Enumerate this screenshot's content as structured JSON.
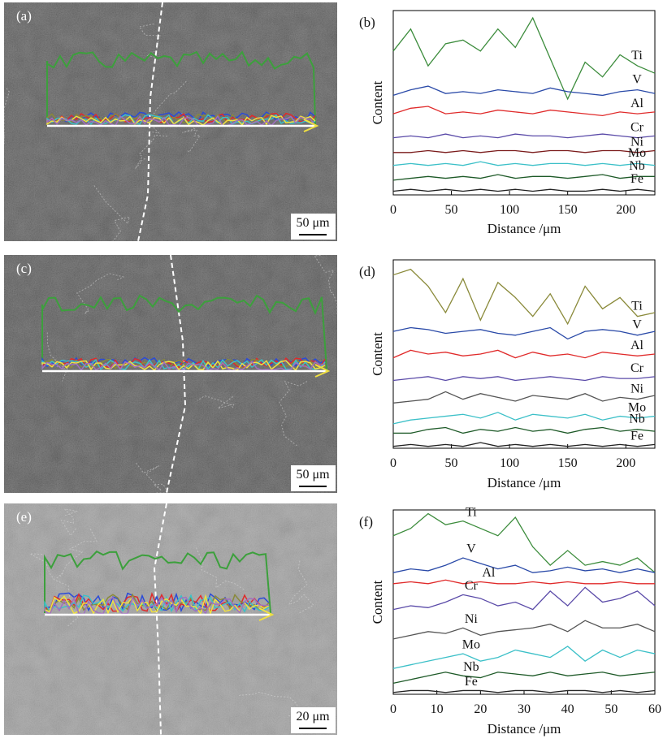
{
  "images": [
    {
      "label": "(a)",
      "scale_bar": "50 μm"
    },
    {
      "label": "(c)",
      "scale_bar": "50 μm"
    },
    {
      "label": "(e)",
      "scale_bar": "20 μm"
    }
  ],
  "chart_data": [
    {
      "type": "line",
      "label": "(b)",
      "xlabel": "Distance /μm",
      "ylabel": "Content",
      "x": [
        0,
        15,
        30,
        45,
        60,
        75,
        90,
        105,
        120,
        135,
        150,
        165,
        180,
        195,
        210,
        225
      ],
      "xlim": [
        0,
        225
      ],
      "ylim": [
        0,
        100
      ],
      "xticks": [
        0,
        50,
        100,
        150,
        200
      ],
      "series": [
        {
          "name": "Ti",
          "color": "#3c8c3c",
          "values": [
            78,
            90,
            70,
            82,
            84,
            78,
            90,
            80,
            96,
            74,
            52,
            72,
            64,
            76,
            70,
            66
          ]
        },
        {
          "name": "V",
          "color": "#2a4aa8",
          "values": [
            54,
            57,
            59,
            55,
            56,
            55,
            57,
            56,
            55,
            58,
            56,
            55,
            54,
            56,
            57,
            55
          ]
        },
        {
          "name": "Al",
          "color": "#e02a2a",
          "values": [
            44,
            47,
            48,
            44,
            45,
            44,
            46,
            45,
            44,
            46,
            45,
            44,
            43,
            45,
            44,
            45
          ]
        },
        {
          "name": "Cr",
          "color": "#5a4aa8",
          "values": [
            31,
            32,
            31,
            33,
            31,
            32,
            31,
            33,
            32,
            32,
            31,
            32,
            33,
            32,
            31,
            32
          ]
        },
        {
          "name": "Ni",
          "color": "#7a1a1a",
          "values": [
            23,
            23,
            24,
            23,
            24,
            23,
            24,
            24,
            23,
            24,
            24,
            23,
            24,
            24,
            23,
            24
          ]
        },
        {
          "name": "Mo",
          "color": "#3cc0c8",
          "values": [
            16,
            17,
            16,
            17,
            16,
            18,
            16,
            17,
            16,
            17,
            17,
            16,
            17,
            16,
            17,
            16
          ]
        },
        {
          "name": "Nb",
          "color": "#1e5a28",
          "values": [
            8,
            9,
            10,
            9,
            10,
            9,
            11,
            9,
            10,
            10,
            9,
            10,
            11,
            9,
            10,
            10
          ]
        },
        {
          "name": "Fe",
          "color": "#222222",
          "values": [
            2,
            3,
            2,
            3,
            2,
            3,
            2,
            3,
            2,
            3,
            2,
            2,
            3,
            2,
            3,
            2
          ]
        }
      ]
    },
    {
      "type": "line",
      "label": "(d)",
      "xlabel": "Distance /μm",
      "ylabel": "Content",
      "x": [
        0,
        15,
        30,
        45,
        60,
        75,
        90,
        105,
        120,
        135,
        150,
        165,
        180,
        195,
        210,
        225
      ],
      "xlim": [
        0,
        225
      ],
      "ylim": [
        0,
        100
      ],
      "xticks": [
        0,
        50,
        100,
        150,
        200
      ],
      "series": [
        {
          "name": "Ti",
          "color": "#8a8a3a",
          "values": [
            92,
            95,
            86,
            72,
            90,
            68,
            88,
            80,
            70,
            82,
            66,
            86,
            74,
            80,
            70,
            72
          ]
        },
        {
          "name": "V",
          "color": "#2a4aa8",
          "values": [
            62,
            64,
            63,
            61,
            62,
            63,
            61,
            60,
            62,
            64,
            58,
            62,
            63,
            62,
            60,
            62
          ]
        },
        {
          "name": "Al",
          "color": "#e02a2a",
          "values": [
            48,
            52,
            50,
            51,
            49,
            50,
            52,
            48,
            51,
            49,
            50,
            48,
            51,
            50,
            49,
            50
          ]
        },
        {
          "name": "Cr",
          "color": "#5a4aa8",
          "values": [
            36,
            37,
            38,
            36,
            38,
            37,
            38,
            36,
            37,
            38,
            37,
            36,
            38,
            37,
            37,
            38
          ]
        },
        {
          "name": "Ni",
          "color": "#555555",
          "values": [
            24,
            25,
            26,
            30,
            26,
            29,
            27,
            25,
            28,
            27,
            26,
            29,
            25,
            27,
            26,
            28
          ]
        },
        {
          "name": "Mo",
          "color": "#3cc0c8",
          "values": [
            13,
            15,
            16,
            17,
            18,
            16,
            19,
            15,
            18,
            17,
            16,
            18,
            15,
            17,
            16,
            17
          ]
        },
        {
          "name": "Nb",
          "color": "#1e5a28",
          "values": [
            8,
            8,
            10,
            11,
            8,
            10,
            9,
            11,
            9,
            10,
            8,
            10,
            11,
            9,
            10,
            9
          ]
        },
        {
          "name": "Fe",
          "color": "#222222",
          "values": [
            1,
            2,
            1,
            2,
            1,
            3,
            1,
            2,
            1,
            2,
            1,
            2,
            1,
            2,
            1,
            2
          ]
        }
      ]
    },
    {
      "type": "line",
      "label": "(f)",
      "xlabel": "Distance /μm",
      "ylabel": "Content",
      "x": [
        0,
        4,
        8,
        12,
        16,
        20,
        24,
        28,
        32,
        36,
        40,
        44,
        48,
        52,
        56,
        60
      ],
      "xlim": [
        0,
        60
      ],
      "ylim": [
        0,
        100
      ],
      "xticks": [
        0,
        10,
        20,
        30,
        40,
        50,
        60
      ],
      "series": [
        {
          "name": "Ti",
          "color": "#3c8c3c",
          "values": [
            86,
            90,
            98,
            92,
            94,
            90,
            86,
            96,
            80,
            70,
            78,
            70,
            72,
            70,
            74,
            66
          ]
        },
        {
          "name": "V",
          "color": "#2a4aa8",
          "values": [
            66,
            68,
            67,
            70,
            74,
            71,
            68,
            70,
            66,
            67,
            69,
            67,
            68,
            66,
            68,
            66
          ]
        },
        {
          "name": "Al",
          "color": "#e02a2a",
          "values": [
            60,
            61,
            60,
            62,
            60,
            61,
            60,
            60,
            61,
            60,
            61,
            60,
            60,
            61,
            60,
            60
          ]
        },
        {
          "name": "Cr",
          "color": "#5a4aa8",
          "values": [
            46,
            48,
            47,
            50,
            54,
            52,
            48,
            50,
            46,
            56,
            48,
            58,
            50,
            52,
            56,
            48
          ]
        },
        {
          "name": "Ni",
          "color": "#555555",
          "values": [
            30,
            32,
            34,
            33,
            36,
            32,
            34,
            35,
            36,
            38,
            34,
            40,
            36,
            36,
            38,
            34
          ]
        },
        {
          "name": "Mo",
          "color": "#3cc0c8",
          "values": [
            14,
            16,
            18,
            20,
            22,
            18,
            20,
            24,
            22,
            20,
            26,
            18,
            24,
            20,
            24,
            22
          ]
        },
        {
          "name": "Nb",
          "color": "#1e5a28",
          "values": [
            6,
            8,
            10,
            12,
            10,
            9,
            12,
            11,
            10,
            12,
            10,
            11,
            12,
            10,
            11,
            12
          ]
        },
        {
          "name": "Fe",
          "color": "#222222",
          "values": [
            1,
            2,
            2,
            1,
            2,
            2,
            1,
            2,
            2,
            1,
            2,
            2,
            1,
            2,
            1,
            2
          ]
        }
      ]
    }
  ]
}
